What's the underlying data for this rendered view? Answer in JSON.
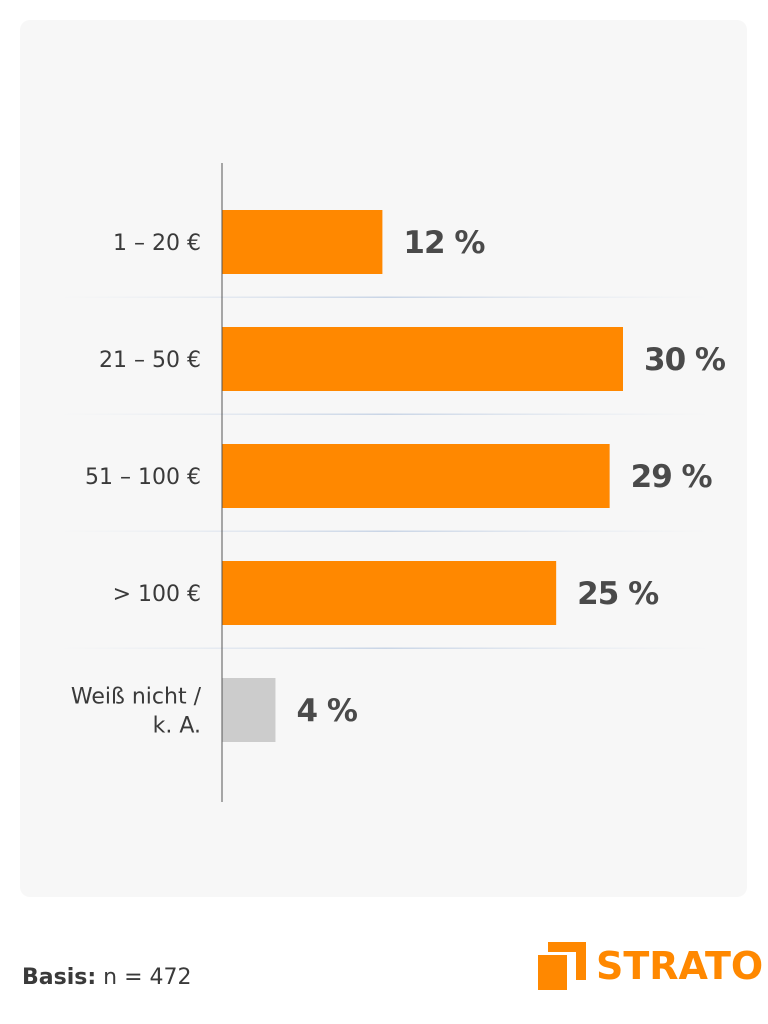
{
  "chart_data": {
    "type": "bar",
    "orientation": "horizontal",
    "categories": [
      "1 – 20 €",
      "21 – 50 €",
      "51  – 100 €",
      "> 100 €",
      "Weiß nicht / k. A."
    ],
    "category_lines": [
      [
        "1 – 20 €"
      ],
      [
        "21 – 50 €"
      ],
      [
        "51  – 100 €"
      ],
      [
        "> 100 €"
      ],
      [
        "Weiß nicht /",
        "k. A."
      ]
    ],
    "values": [
      12,
      30,
      29,
      25,
      4
    ],
    "value_labels": [
      "12 %",
      "30 %",
      "29 %",
      "25 %",
      "4 %"
    ],
    "unit": "%",
    "bar_colors": [
      "#ff8800",
      "#ff8800",
      "#ff8800",
      "#ff8800",
      "#cccccc"
    ],
    "xlim": [
      0,
      30
    ],
    "grid": false,
    "title": "",
    "xlabel": "",
    "ylabel": ""
  },
  "footer": {
    "basis_label": "Basis:",
    "basis_value": " n = 472"
  },
  "logo": {
    "text": "STRATO",
    "color": "#ff8800"
  }
}
